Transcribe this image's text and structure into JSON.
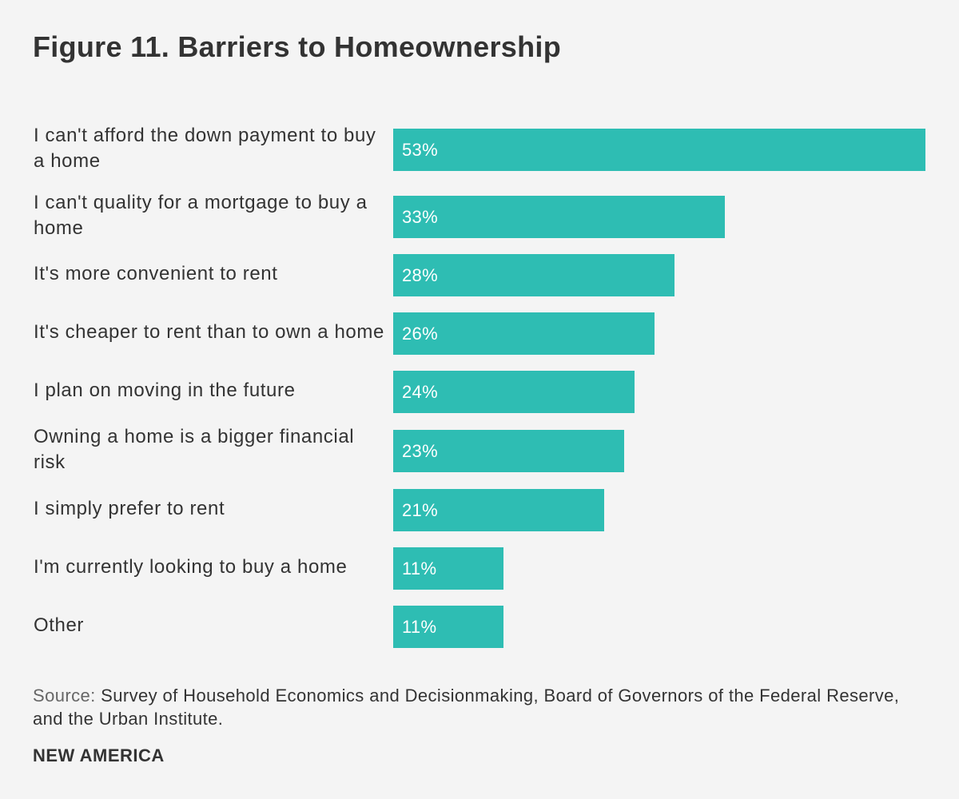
{
  "title": "Figure 11. Barriers to Homeownership",
  "colors": {
    "background": "#f4f4f4",
    "bar": "#2ebdb3",
    "text": "#333333",
    "bar_text": "#ffffff"
  },
  "chart_data": {
    "type": "bar",
    "orientation": "horizontal",
    "categories": [
      "I can't afford the down payment to buy a home",
      "I can't quality for a mortgage to buy a home",
      "It's more convenient to rent",
      "It's cheaper to rent than to own a home",
      "I plan on moving in the future",
      "Owning a home is a bigger financial risk",
      "I simply prefer to rent",
      "I'm currently looking to buy a home",
      "Other"
    ],
    "values": [
      53,
      33,
      28,
      26,
      24,
      23,
      21,
      11,
      11
    ],
    "value_labels": [
      "53%",
      "33%",
      "28%",
      "26%",
      "24%",
      "23%",
      "21%",
      "11%",
      "11%"
    ],
    "unit": "%",
    "xlim": [
      0,
      53
    ],
    "grid": false,
    "legend": "none"
  },
  "source": {
    "label": "Source:",
    "text": "Survey of Household Economics and Decisionmaking, Board of Governors of the Federal Reserve, and the Urban Institute."
  },
  "brand": "NEW AMERICA"
}
